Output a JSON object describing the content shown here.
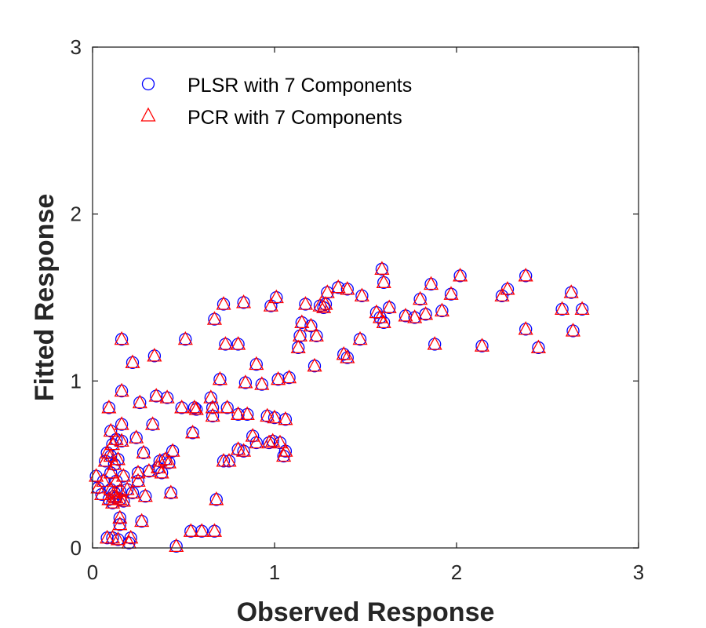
{
  "chart_data": {
    "type": "scatter",
    "title": "",
    "xlabel": "Observed Response",
    "ylabel": "Fitted Response",
    "xlim": [
      0,
      3
    ],
    "ylim": [
      0,
      3
    ],
    "xticks": [
      "0",
      "1",
      "2",
      "3"
    ],
    "yticks": [
      "0",
      "1",
      "2",
      "3"
    ],
    "grid": false,
    "legend_placement": "top-left",
    "colors": {
      "plsr": "#0000ff",
      "pcr": "#ff0000",
      "axis": "#262626"
    },
    "series": [
      {
        "name": "PLSR with 7 Components",
        "marker": "circle",
        "color": "#0000ff",
        "points": [
          [
            0.02,
            0.43
          ],
          [
            0.03,
            0.36
          ],
          [
            0.05,
            0.32
          ],
          [
            0.06,
            0.4
          ],
          [
            0.07,
            0.52
          ],
          [
            0.08,
            0.57
          ],
          [
            0.08,
            0.06
          ],
          [
            0.09,
            0.84
          ],
          [
            0.09,
            0.29
          ],
          [
            0.1,
            0.7
          ],
          [
            0.1,
            0.55
          ],
          [
            0.1,
            0.45
          ],
          [
            0.1,
            0.35
          ],
          [
            0.11,
            0.62
          ],
          [
            0.11,
            0.27
          ],
          [
            0.11,
            0.06
          ],
          [
            0.12,
            0.5
          ],
          [
            0.12,
            0.33
          ],
          [
            0.12,
            0.31
          ],
          [
            0.13,
            0.65
          ],
          [
            0.13,
            0.4
          ],
          [
            0.13,
            0.3
          ],
          [
            0.14,
            0.05
          ],
          [
            0.14,
            0.53
          ],
          [
            0.15,
            0.14
          ],
          [
            0.15,
            0.18
          ],
          [
            0.15,
            0.34
          ],
          [
            0.15,
            0.29
          ],
          [
            0.16,
            1.25
          ],
          [
            0.16,
            0.94
          ],
          [
            0.16,
            0.74
          ],
          [
            0.16,
            0.64
          ],
          [
            0.17,
            0.43
          ],
          [
            0.17,
            0.28
          ],
          [
            0.19,
            0.35
          ],
          [
            0.2,
            0.03
          ],
          [
            0.21,
            0.06
          ],
          [
            0.22,
            0.33
          ],
          [
            0.22,
            1.11
          ],
          [
            0.24,
            0.66
          ],
          [
            0.25,
            0.45
          ],
          [
            0.25,
            0.4
          ],
          [
            0.26,
            0.87
          ],
          [
            0.27,
            0.16
          ],
          [
            0.28,
            0.57
          ],
          [
            0.29,
            0.31
          ],
          [
            0.31,
            0.46
          ],
          [
            0.33,
            0.74
          ],
          [
            0.34,
            1.15
          ],
          [
            0.35,
            0.91
          ],
          [
            0.36,
            0.48
          ],
          [
            0.37,
            0.52
          ],
          [
            0.38,
            0.45
          ],
          [
            0.4,
            0.53
          ],
          [
            0.41,
            0.9
          ],
          [
            0.42,
            0.51
          ],
          [
            0.43,
            0.33
          ],
          [
            0.44,
            0.58
          ],
          [
            0.46,
            0.01
          ],
          [
            0.49,
            0.84
          ],
          [
            0.51,
            1.25
          ],
          [
            0.54,
            0.1
          ],
          [
            0.55,
            0.69
          ],
          [
            0.56,
            0.84
          ],
          [
            0.57,
            0.83
          ],
          [
            0.6,
            0.1
          ],
          [
            0.65,
            0.9
          ],
          [
            0.66,
            0.84
          ],
          [
            0.66,
            0.79
          ],
          [
            0.67,
            0.1
          ],
          [
            0.67,
            1.37
          ],
          [
            0.68,
            0.29
          ],
          [
            0.7,
            1.01
          ],
          [
            0.72,
            1.46
          ],
          [
            0.72,
            0.52
          ],
          [
            0.73,
            1.22
          ],
          [
            0.74,
            0.84
          ],
          [
            0.75,
            0.52
          ],
          [
            0.8,
            0.8
          ],
          [
            0.8,
            0.59
          ],
          [
            0.8,
            1.22
          ],
          [
            0.83,
            1.47
          ],
          [
            0.83,
            0.58
          ],
          [
            0.84,
            0.99
          ],
          [
            0.85,
            0.8
          ],
          [
            0.88,
            0.67
          ],
          [
            0.9,
            1.1
          ],
          [
            0.9,
            0.63
          ],
          [
            0.93,
            0.98
          ],
          [
            0.96,
            0.79
          ],
          [
            0.97,
            0.63
          ],
          [
            0.98,
            1.45
          ],
          [
            0.99,
            0.64
          ],
          [
            1.0,
            0.78
          ],
          [
            1.01,
            1.5
          ],
          [
            1.02,
            1.01
          ],
          [
            1.03,
            0.63
          ],
          [
            1.05,
            0.55
          ],
          [
            1.06,
            0.58
          ],
          [
            1.06,
            0.77
          ],
          [
            1.08,
            1.02
          ],
          [
            1.13,
            1.2
          ],
          [
            1.14,
            1.27
          ],
          [
            1.15,
            1.35
          ],
          [
            1.17,
            1.46
          ],
          [
            1.2,
            1.33
          ],
          [
            1.22,
            1.09
          ],
          [
            1.23,
            1.27
          ],
          [
            1.25,
            1.45
          ],
          [
            1.27,
            1.44
          ],
          [
            1.28,
            1.46
          ],
          [
            1.29,
            1.53
          ],
          [
            1.35,
            1.56
          ],
          [
            1.38,
            1.16
          ],
          [
            1.4,
            1.14
          ],
          [
            1.4,
            1.55
          ],
          [
            1.47,
            1.25
          ],
          [
            1.48,
            1.51
          ],
          [
            1.56,
            1.41
          ],
          [
            1.58,
            1.38
          ],
          [
            1.59,
            1.67
          ],
          [
            1.6,
            1.59
          ],
          [
            1.6,
            1.35
          ],
          [
            1.63,
            1.44
          ],
          [
            1.72,
            1.39
          ],
          [
            1.77,
            1.38
          ],
          [
            1.8,
            1.49
          ],
          [
            1.83,
            1.4
          ],
          [
            1.86,
            1.58
          ],
          [
            1.88,
            1.22
          ],
          [
            1.92,
            1.42
          ],
          [
            1.97,
            1.52
          ],
          [
            2.02,
            1.63
          ],
          [
            2.14,
            1.21
          ],
          [
            2.25,
            1.51
          ],
          [
            2.28,
            1.55
          ],
          [
            2.38,
            1.63
          ],
          [
            2.38,
            1.31
          ],
          [
            2.45,
            1.2
          ],
          [
            2.58,
            1.43
          ],
          [
            2.63,
            1.53
          ],
          [
            2.64,
            1.3
          ],
          [
            2.69,
            1.43
          ]
        ]
      },
      {
        "name": "PCR with 7 Components",
        "marker": "triangle",
        "color": "#ff0000",
        "points": [
          [
            0.02,
            0.43
          ],
          [
            0.03,
            0.36
          ],
          [
            0.05,
            0.32
          ],
          [
            0.06,
            0.4
          ],
          [
            0.07,
            0.52
          ],
          [
            0.08,
            0.57
          ],
          [
            0.08,
            0.06
          ],
          [
            0.09,
            0.84
          ],
          [
            0.09,
            0.29
          ],
          [
            0.1,
            0.7
          ],
          [
            0.1,
            0.55
          ],
          [
            0.1,
            0.45
          ],
          [
            0.1,
            0.35
          ],
          [
            0.11,
            0.62
          ],
          [
            0.11,
            0.27
          ],
          [
            0.11,
            0.06
          ],
          [
            0.12,
            0.5
          ],
          [
            0.12,
            0.33
          ],
          [
            0.12,
            0.31
          ],
          [
            0.13,
            0.65
          ],
          [
            0.13,
            0.4
          ],
          [
            0.13,
            0.3
          ],
          [
            0.14,
            0.05
          ],
          [
            0.14,
            0.53
          ],
          [
            0.15,
            0.14
          ],
          [
            0.15,
            0.18
          ],
          [
            0.15,
            0.34
          ],
          [
            0.15,
            0.29
          ],
          [
            0.16,
            1.25
          ],
          [
            0.16,
            0.94
          ],
          [
            0.16,
            0.74
          ],
          [
            0.16,
            0.64
          ],
          [
            0.17,
            0.43
          ],
          [
            0.17,
            0.28
          ],
          [
            0.19,
            0.35
          ],
          [
            0.2,
            0.03
          ],
          [
            0.21,
            0.06
          ],
          [
            0.22,
            0.33
          ],
          [
            0.22,
            1.11
          ],
          [
            0.24,
            0.66
          ],
          [
            0.25,
            0.45
          ],
          [
            0.25,
            0.4
          ],
          [
            0.26,
            0.87
          ],
          [
            0.27,
            0.16
          ],
          [
            0.28,
            0.57
          ],
          [
            0.29,
            0.31
          ],
          [
            0.31,
            0.46
          ],
          [
            0.33,
            0.74
          ],
          [
            0.34,
            1.15
          ],
          [
            0.35,
            0.91
          ],
          [
            0.36,
            0.48
          ],
          [
            0.37,
            0.52
          ],
          [
            0.38,
            0.45
          ],
          [
            0.4,
            0.53
          ],
          [
            0.41,
            0.9
          ],
          [
            0.42,
            0.51
          ],
          [
            0.43,
            0.33
          ],
          [
            0.44,
            0.58
          ],
          [
            0.46,
            0.01
          ],
          [
            0.49,
            0.84
          ],
          [
            0.51,
            1.25
          ],
          [
            0.54,
            0.1
          ],
          [
            0.55,
            0.69
          ],
          [
            0.56,
            0.84
          ],
          [
            0.57,
            0.83
          ],
          [
            0.6,
            0.1
          ],
          [
            0.65,
            0.9
          ],
          [
            0.66,
            0.84
          ],
          [
            0.66,
            0.79
          ],
          [
            0.67,
            0.1
          ],
          [
            0.67,
            1.37
          ],
          [
            0.68,
            0.29
          ],
          [
            0.7,
            1.01
          ],
          [
            0.72,
            1.46
          ],
          [
            0.72,
            0.52
          ],
          [
            0.73,
            1.22
          ],
          [
            0.74,
            0.84
          ],
          [
            0.75,
            0.52
          ],
          [
            0.8,
            0.8
          ],
          [
            0.8,
            0.59
          ],
          [
            0.8,
            1.22
          ],
          [
            0.83,
            1.47
          ],
          [
            0.83,
            0.58
          ],
          [
            0.84,
            0.99
          ],
          [
            0.85,
            0.8
          ],
          [
            0.88,
            0.67
          ],
          [
            0.9,
            1.1
          ],
          [
            0.9,
            0.63
          ],
          [
            0.93,
            0.98
          ],
          [
            0.96,
            0.79
          ],
          [
            0.97,
            0.63
          ],
          [
            0.98,
            1.45
          ],
          [
            0.99,
            0.64
          ],
          [
            1.0,
            0.78
          ],
          [
            1.01,
            1.5
          ],
          [
            1.02,
            1.01
          ],
          [
            1.03,
            0.63
          ],
          [
            1.05,
            0.55
          ],
          [
            1.06,
            0.58
          ],
          [
            1.06,
            0.77
          ],
          [
            1.08,
            1.02
          ],
          [
            1.13,
            1.2
          ],
          [
            1.14,
            1.27
          ],
          [
            1.15,
            1.35
          ],
          [
            1.17,
            1.46
          ],
          [
            1.2,
            1.33
          ],
          [
            1.22,
            1.09
          ],
          [
            1.23,
            1.27
          ],
          [
            1.25,
            1.45
          ],
          [
            1.27,
            1.44
          ],
          [
            1.28,
            1.46
          ],
          [
            1.29,
            1.53
          ],
          [
            1.35,
            1.56
          ],
          [
            1.38,
            1.16
          ],
          [
            1.4,
            1.14
          ],
          [
            1.4,
            1.55
          ],
          [
            1.47,
            1.25
          ],
          [
            1.48,
            1.51
          ],
          [
            1.56,
            1.41
          ],
          [
            1.58,
            1.38
          ],
          [
            1.59,
            1.67
          ],
          [
            1.6,
            1.59
          ],
          [
            1.6,
            1.35
          ],
          [
            1.63,
            1.44
          ],
          [
            1.72,
            1.39
          ],
          [
            1.77,
            1.38
          ],
          [
            1.8,
            1.49
          ],
          [
            1.83,
            1.4
          ],
          [
            1.86,
            1.58
          ],
          [
            1.88,
            1.22
          ],
          [
            1.92,
            1.42
          ],
          [
            1.97,
            1.52
          ],
          [
            2.02,
            1.63
          ],
          [
            2.14,
            1.21
          ],
          [
            2.25,
            1.51
          ],
          [
            2.28,
            1.55
          ],
          [
            2.38,
            1.63
          ],
          [
            2.38,
            1.31
          ],
          [
            2.45,
            1.2
          ],
          [
            2.58,
            1.43
          ],
          [
            2.63,
            1.53
          ],
          [
            2.64,
            1.3
          ],
          [
            2.69,
            1.43
          ]
        ]
      }
    ]
  }
}
